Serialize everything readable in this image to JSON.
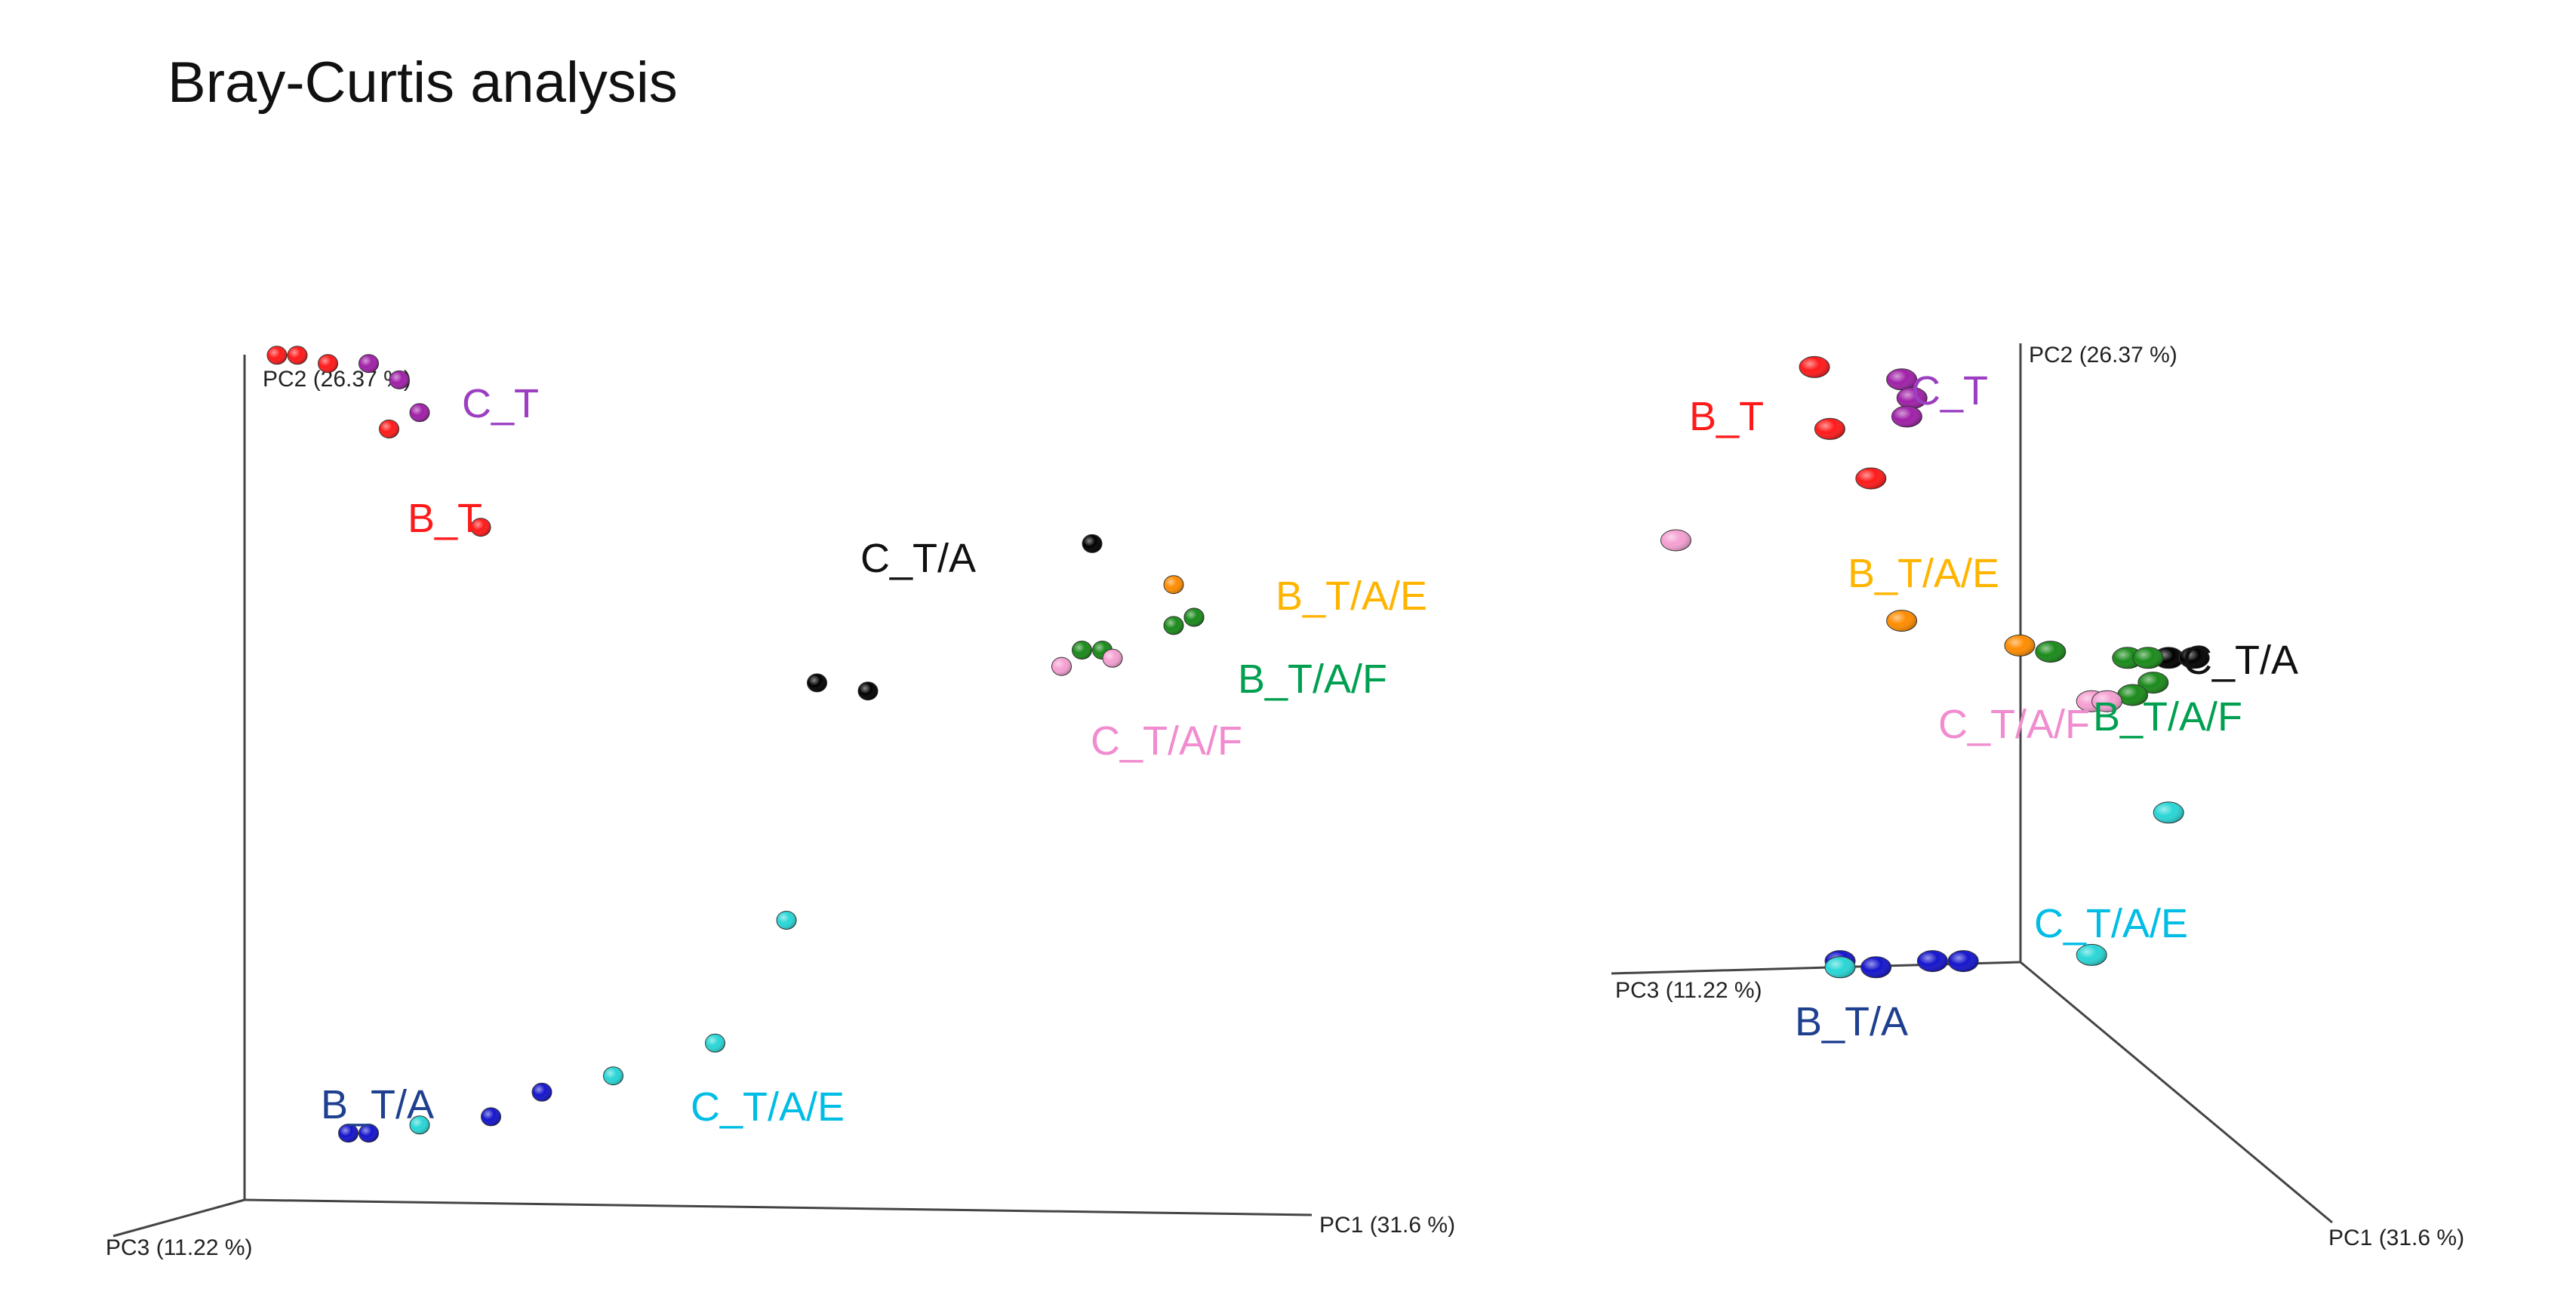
{
  "title": "Bray-Curtis analysis",
  "colors": {
    "B_T": "#ff1a1a",
    "C_T": "#a020a8",
    "C_T/A": "#000000",
    "B_T/A/E": "#ff8c00",
    "B_T/A/F": "#1a8a1a",
    "C_T/A/F": "#f5a0d2",
    "B_T/A": "#1515cc",
    "C_T/A/E": "#29d6d6"
  },
  "label_colors": {
    "B_T": "#ff1a1a",
    "C_T": "#9b3fc0",
    "C_T/A": "#111111",
    "B_T/A/E": "#ffb400",
    "B_T/A/F": "#00a050",
    "C_T/A/F": "#f08ccf",
    "B_T/A": "#1f3f8f",
    "C_T/A/E": "#00bde6"
  },
  "chart_data": [
    {
      "type": "scatter",
      "view": "left",
      "axes": [
        "PC1 (31.6 %)",
        "PC2 (26.37 %)",
        "PC3 (11.22 %)"
      ],
      "groups": [
        {
          "name": "B_T",
          "points": [
            [
              0.02,
              0.99
            ],
            [
              0.04,
              0.99
            ],
            [
              0.07,
              0.98
            ],
            [
              0.13,
              0.9
            ],
            [
              0.22,
              0.78
            ]
          ]
        },
        {
          "name": "C_T",
          "points": [
            [
              0.11,
              0.98
            ],
            [
              0.14,
              0.96
            ],
            [
              0.16,
              0.92
            ]
          ]
        },
        {
          "name": "C_T/A",
          "points": [
            [
              0.82,
              0.76
            ],
            [
              0.55,
              0.59
            ],
            [
              0.6,
              0.58
            ]
          ]
        },
        {
          "name": "B_T/A/E",
          "points": [
            [
              0.9,
              0.71
            ],
            [
              0.92,
              0.67
            ]
          ]
        },
        {
          "name": "B_T/A/F",
          "points": [
            [
              0.81,
              0.63
            ],
            [
              0.83,
              0.63
            ],
            [
              0.9,
              0.66
            ],
            [
              0.92,
              0.67
            ]
          ]
        },
        {
          "name": "C_T/A/F",
          "points": [
            [
              0.79,
              0.61
            ],
            [
              0.84,
              0.62
            ]
          ]
        },
        {
          "name": "B_T/A",
          "points": [
            [
              0.09,
              0.04
            ],
            [
              0.11,
              0.04
            ],
            [
              0.23,
              0.06
            ],
            [
              0.28,
              0.09
            ]
          ]
        },
        {
          "name": "C_T/A/E",
          "points": [
            [
              0.16,
              0.05
            ],
            [
              0.35,
              0.11
            ],
            [
              0.45,
              0.15
            ],
            [
              0.52,
              0.3
            ]
          ]
        }
      ]
    },
    {
      "type": "scatter",
      "view": "right",
      "axes": [
        "PC1 (31.6 %)",
        "PC2 (26.37 %)",
        "PC3 (11.22 %)"
      ],
      "groups": [
        {
          "name": "B_T",
          "points": [
            [
              0.3,
              0.98
            ],
            [
              0.33,
              0.88
            ],
            [
              0.41,
              0.8
            ]
          ]
        },
        {
          "name": "C_T",
          "points": [
            [
              0.47,
              0.96
            ],
            [
              0.49,
              0.93
            ],
            [
              0.48,
              0.9
            ]
          ]
        },
        {
          "name": "C_T/A",
          "points": [
            [
              0.99,
              0.51
            ],
            [
              1.04,
              0.51
            ]
          ]
        },
        {
          "name": "B_T/A/E",
          "points": [
            [
              0.47,
              0.57
            ],
            [
              0.7,
              0.53
            ]
          ]
        },
        {
          "name": "B_T/A/F",
          "points": [
            [
              0.76,
              0.52
            ],
            [
              0.91,
              0.51
            ],
            [
              0.95,
              0.51
            ],
            [
              0.96,
              0.47
            ],
            [
              0.92,
              0.45
            ]
          ]
        },
        {
          "name": "C_T/A/F",
          "points": [
            [
              0.03,
              0.7
            ],
            [
              0.84,
              0.44
            ],
            [
              0.87,
              0.44
            ]
          ]
        },
        {
          "name": "B_T/A",
          "points": [
            [
              0.35,
              0.02
            ],
            [
              0.42,
              0.01
            ],
            [
              0.53,
              0.02
            ],
            [
              0.59,
              0.02
            ]
          ]
        },
        {
          "name": "C_T/A/E",
          "points": [
            [
              0.35,
              0.01
            ],
            [
              0.84,
              0.03
            ],
            [
              0.99,
              0.26
            ]
          ]
        }
      ]
    }
  ]
}
